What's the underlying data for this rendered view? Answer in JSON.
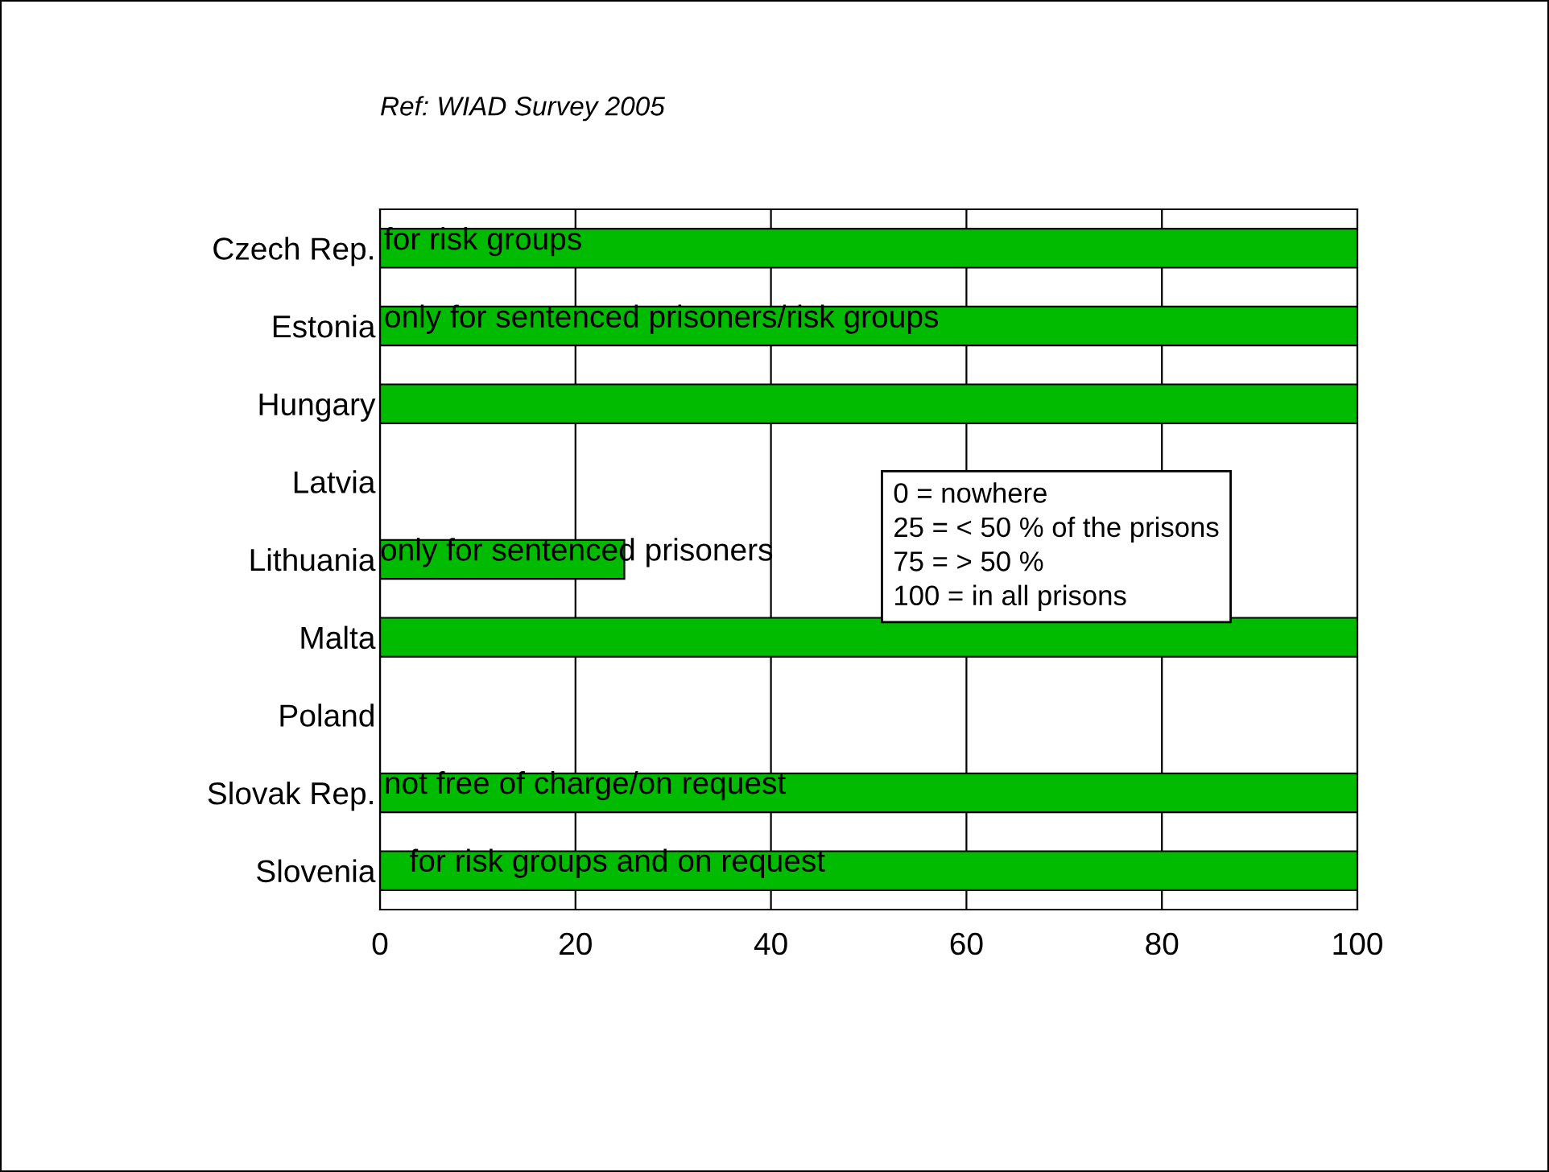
{
  "chart_data": {
    "type": "bar",
    "orientation": "horizontal",
    "title": "Ref: WIAD Survey 2005",
    "categories": [
      "Czech Rep.",
      "Estonia",
      "Hungary",
      "Latvia",
      "Lithuania",
      "Malta",
      "Poland",
      "Slovak Rep.",
      "Slovenia"
    ],
    "values": [
      100,
      100,
      100,
      0,
      25,
      100,
      0,
      100,
      100
    ],
    "color": "#00bb00",
    "xlim": [
      0,
      100
    ],
    "xticks": [
      0,
      20,
      40,
      60,
      80,
      100
    ],
    "grid": "x",
    "annotations": [
      "for risk groups",
      "only for sentenced prisoners/risk groups",
      "only for sentenced prisoners",
      "not free of charge/on request",
      "for risk groups and on request",
      "0 = nowhere\n25 = < 50 % of the prisons\n75 = > 50 %\n100 = in all prisons"
    ]
  }
}
